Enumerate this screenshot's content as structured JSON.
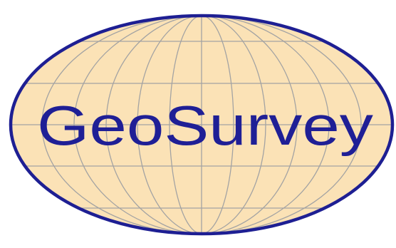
{
  "logo": {
    "brand_name": "GeoSurvey",
    "fill_color": "#FBE2B6",
    "outline_color": "#1E1F93",
    "grid_color": "#A3A3A3",
    "text_color": "#1F1F96"
  }
}
